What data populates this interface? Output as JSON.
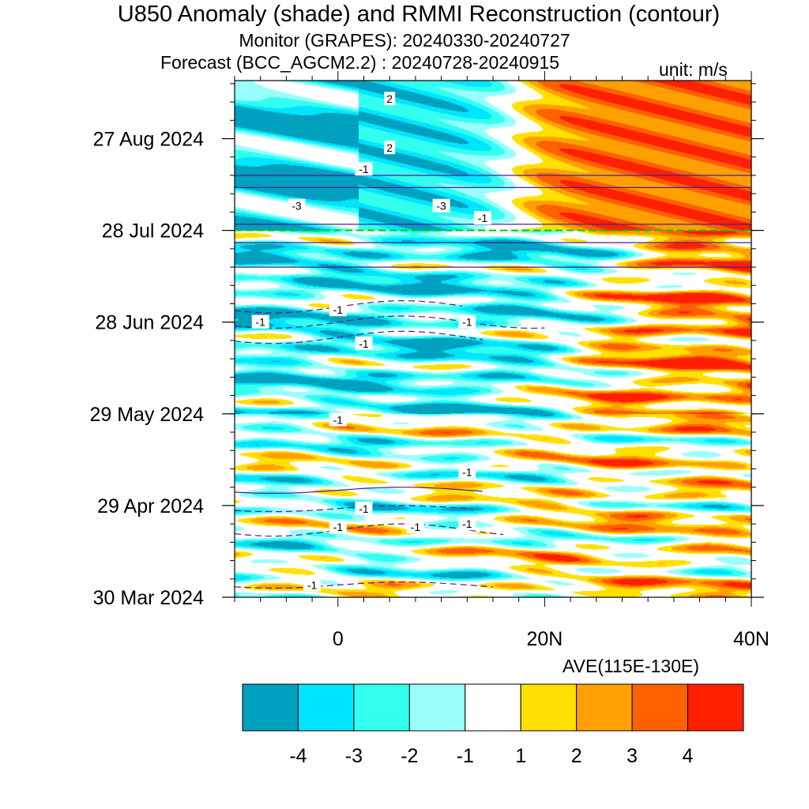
{
  "header": {
    "title": "U850 Anomaly (shade) and RMMI Reconstruction (contour)",
    "monitor": "Monitor (GRAPES): 20240330-20240727",
    "forecast": "Forecast (BCC_AGCM2.2) : 20240728-20240915",
    "unit": "unit: m/s",
    "average": "AVE(115E-130E)"
  },
  "colors": {
    "palette": [
      "#00a0bf",
      "#00e5ff",
      "#33ffef",
      "#99fffb",
      "#ffffff",
      "#ffe000",
      "#ffa000",
      "#ff6000",
      "#ff2000"
    ],
    "contour": "#4b1f8f",
    "forecast_line": "#00cc00"
  },
  "chart_data": {
    "type": "heatmap",
    "xlabel": "",
    "ylabel": "",
    "x_axis": {
      "range": [
        -10,
        40
      ],
      "ticks": [
        0,
        20,
        40
      ],
      "tick_labels": [
        "0",
        "20N",
        "40N"
      ]
    },
    "y_axis": {
      "range": [
        "2024-03-30",
        "2024-09-15"
      ],
      "ticks": [
        "2024-03-30",
        "2024-04-29",
        "2024-05-29",
        "2024-06-28",
        "2024-07-28",
        "2024-08-27"
      ],
      "tick_labels": [
        "30 Mar 2024",
        "29 Apr 2024",
        "29 May 2024",
        "28 Jun 2024",
        "28 Jul 2024",
        "27 Aug 2024"
      ]
    },
    "forecast_start": "2024-07-28",
    "colorbar": {
      "levels": [
        -4,
        -3,
        -2,
        -1,
        1,
        2,
        3,
        4
      ],
      "labels": [
        "-4",
        "-3",
        "-2",
        "-1",
        "1",
        "2",
        "3",
        "4"
      ]
    },
    "contour_labels": [
      {
        "text": "2",
        "lat": 5,
        "date": "2024-09-09"
      },
      {
        "text": "2",
        "lat": 5,
        "date": "2024-08-24"
      },
      {
        "text": "-1",
        "lat": 2.5,
        "date": "2024-08-17"
      },
      {
        "text": "-3",
        "lat": -4,
        "date": "2024-08-05"
      },
      {
        "text": "-3",
        "lat": 10,
        "date": "2024-08-05"
      },
      {
        "text": "-1",
        "lat": 14,
        "date": "2024-08-01"
      },
      {
        "text": "-1",
        "lat": 0,
        "date": "2024-07-02"
      },
      {
        "text": "-1",
        "lat": -7.5,
        "date": "2024-06-28"
      },
      {
        "text": "-1",
        "lat": 12.5,
        "date": "2024-06-28"
      },
      {
        "text": "-1",
        "lat": 2.5,
        "date": "2024-06-21"
      },
      {
        "text": "-1",
        "lat": 0,
        "date": "2024-05-27"
      },
      {
        "text": "-1",
        "lat": 12.5,
        "date": "2024-05-10"
      },
      {
        "text": "-1",
        "lat": 2.5,
        "date": "2024-04-28"
      },
      {
        "text": "-1",
        "lat": 0,
        "date": "2024-04-22"
      },
      {
        "text": "-1",
        "lat": 7.5,
        "date": "2024-04-22"
      },
      {
        "text": "-1",
        "lat": 12.5,
        "date": "2024-04-23"
      },
      {
        "text": "-1",
        "lat": -2.5,
        "date": "2024-04-03"
      }
    ]
  }
}
